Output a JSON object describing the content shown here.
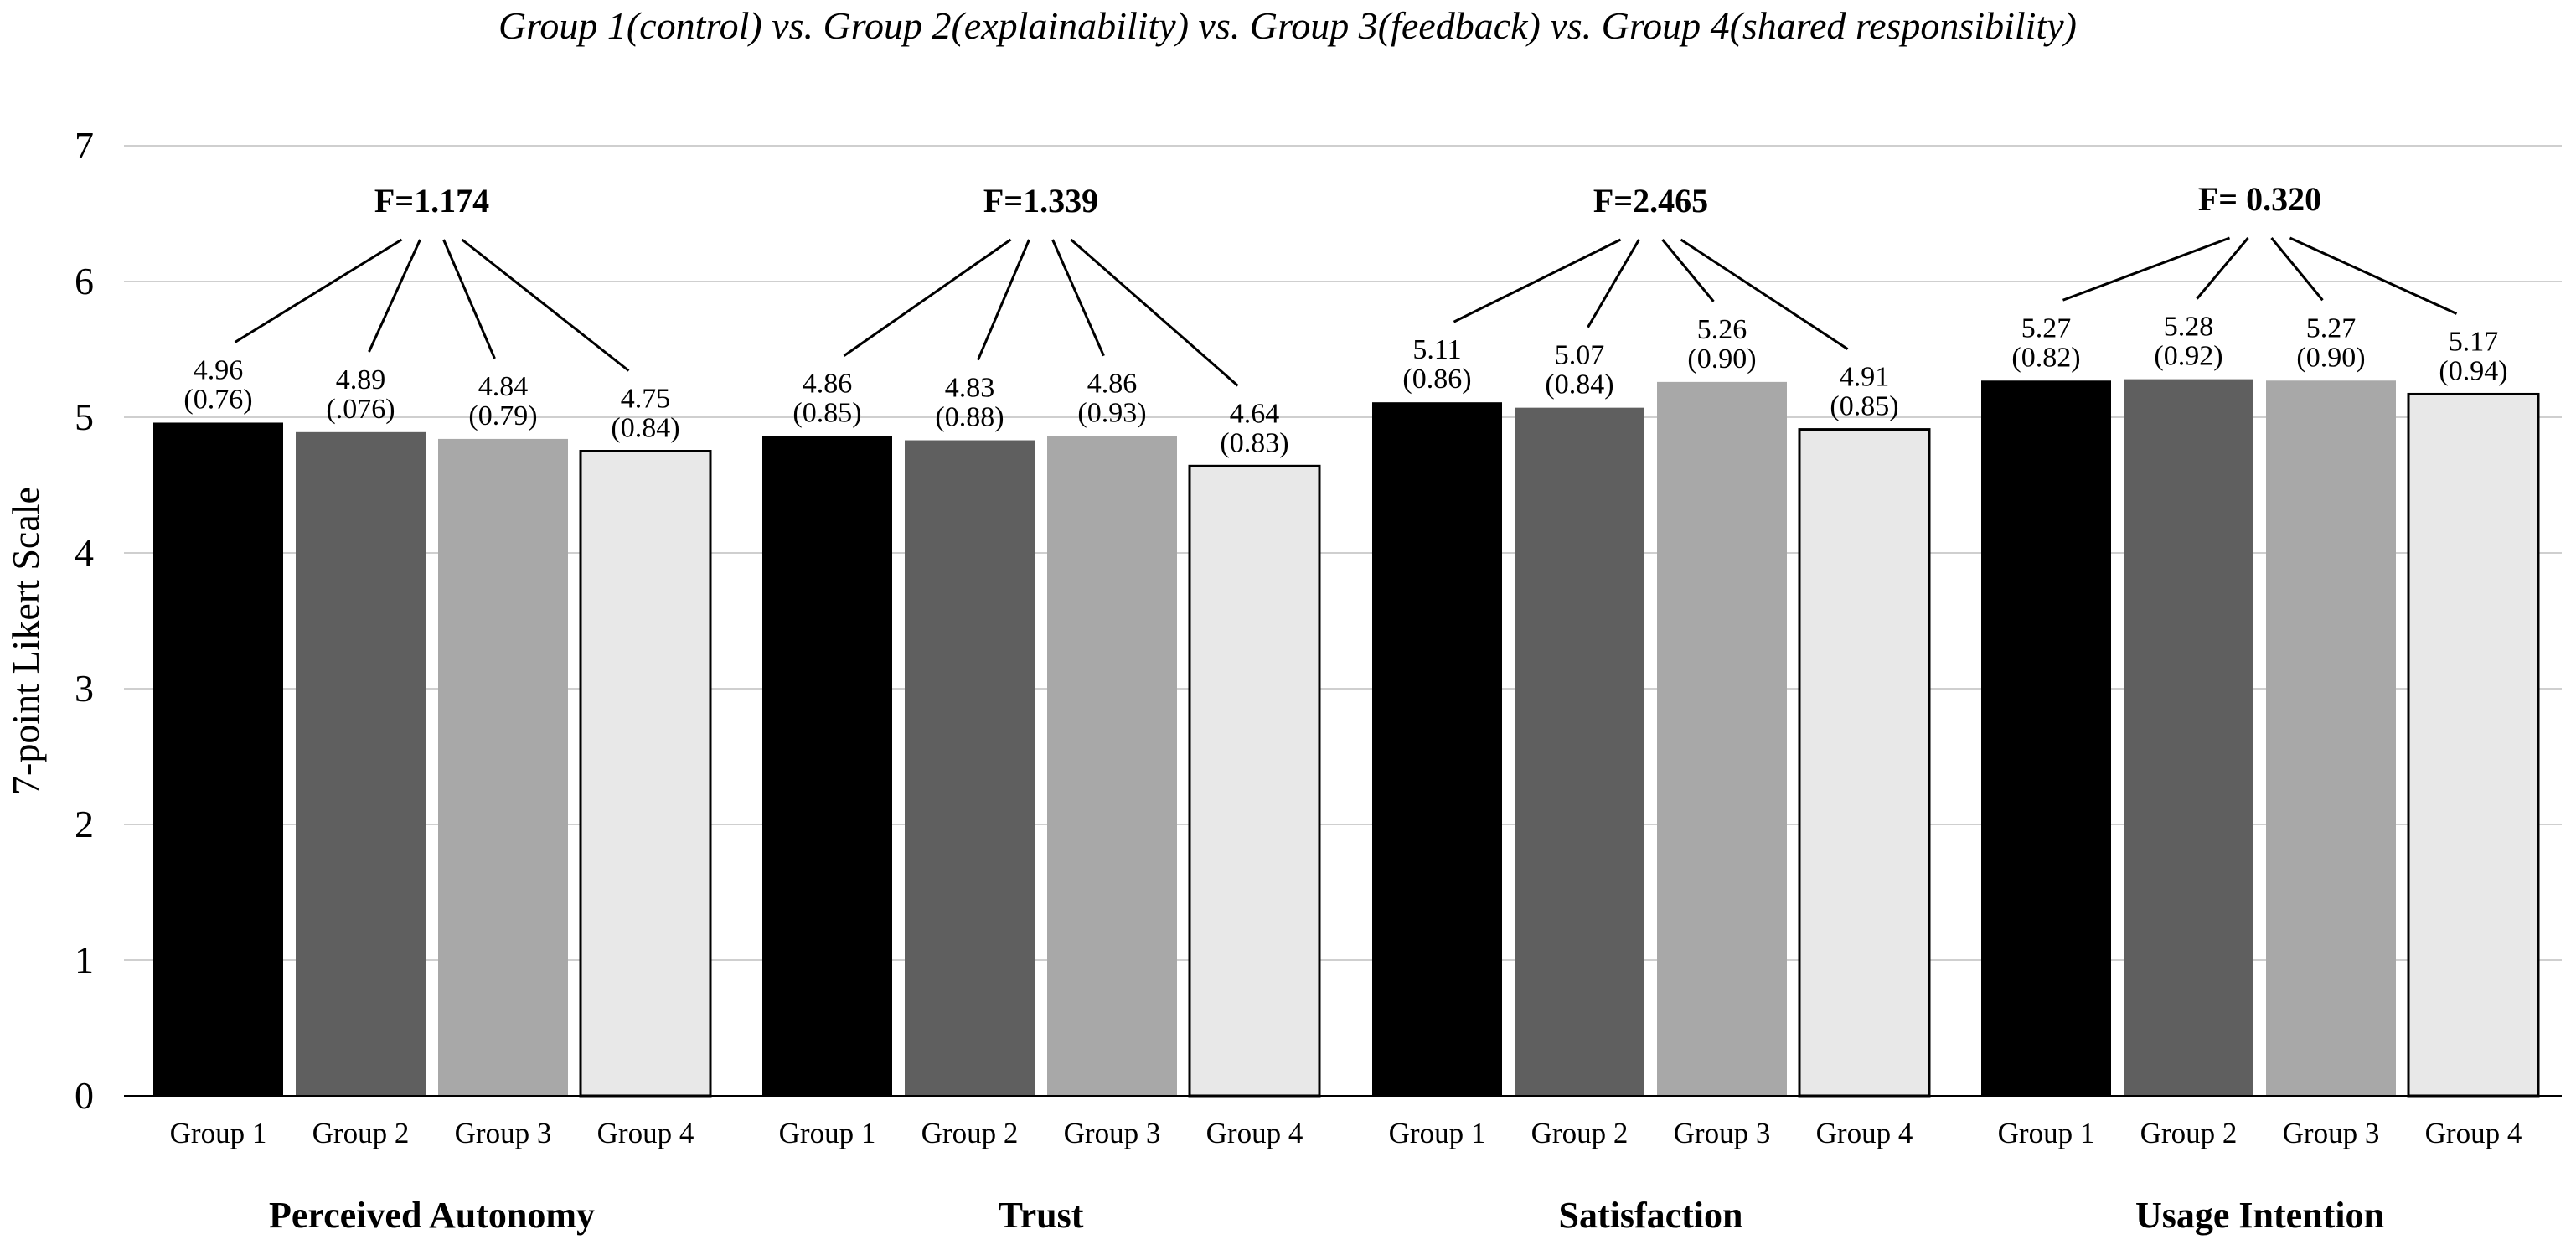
{
  "chart_data": {
    "type": "bar",
    "title": "Group 1(control) vs. Group 2(explainability) vs. Group 3(feedback) vs. Group 4(shared responsibility)",
    "xlabel": "",
    "ylabel": "7-point Likert Scale",
    "ylim": [
      0,
      7
    ],
    "yticks": [
      "0",
      "1",
      "2",
      "3",
      "4",
      "5",
      "6",
      "7"
    ],
    "grid": true,
    "series_names": [
      "Group 1",
      "Group 2",
      "Group 3",
      "Group 4"
    ],
    "series_colors": [
      "#000000",
      "#5f5f5f",
      "#a8a8a8",
      "#e8e8e8"
    ],
    "groups": [
      {
        "name": "Perceived Autonomy",
        "f_label": "F=1.174",
        "values": [
          4.96,
          4.89,
          4.84,
          4.75
        ],
        "sd_labels": [
          "(0.76)",
          "(.076)",
          "(0.79)",
          "(0.84)"
        ],
        "mean_labels": [
          "4.96",
          "4.89",
          "4.84",
          "4.75"
        ]
      },
      {
        "name": "Trust",
        "f_label": "F=1.339",
        "values": [
          4.86,
          4.83,
          4.86,
          4.64
        ],
        "sd_labels": [
          "(0.85)",
          "(0.88)",
          "(0.93)",
          "(0.83)"
        ],
        "mean_labels": [
          "4.86",
          "4.83",
          "4.86",
          "4.64"
        ]
      },
      {
        "name": "Satisfaction",
        "f_label": "F=2.465",
        "values": [
          5.11,
          5.07,
          5.26,
          4.91
        ],
        "sd_labels": [
          "(0.86)",
          "(0.84)",
          "(0.90)",
          "(0.85)"
        ],
        "mean_labels": [
          "5.11",
          "5.07",
          "5.26",
          "4.91"
        ]
      },
      {
        "name": "Usage Intention",
        "f_label": "F= 0.320",
        "values": [
          5.27,
          5.28,
          5.27,
          5.17
        ],
        "sd_labels": [
          "(0.82)",
          "(0.92)",
          "(0.90)",
          "(0.94)"
        ],
        "mean_labels": [
          "5.27",
          "5.28",
          "5.27",
          "5.17"
        ]
      }
    ]
  }
}
